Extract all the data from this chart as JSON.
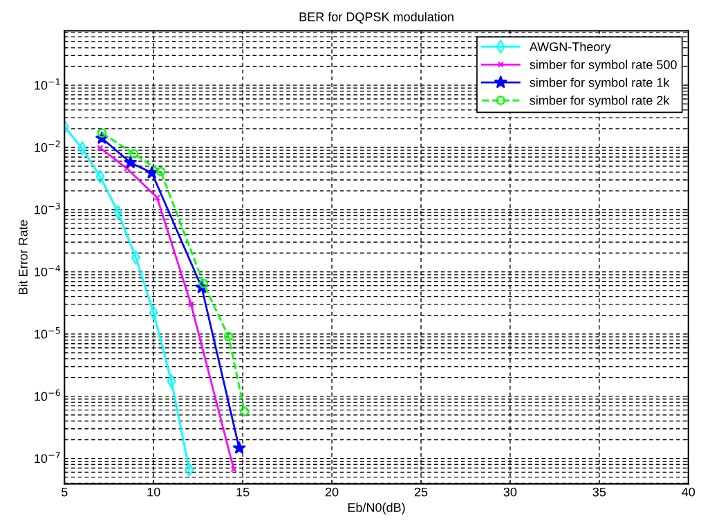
{
  "chart_data": {
    "type": "line",
    "title": "BER for DQPSK modulation",
    "xlabel": "Eb/N0(dB)",
    "ylabel": "Bit Error Rate",
    "log": "y",
    "grid": true,
    "legend": "top right",
    "xlim": [
      5,
      40
    ],
    "xticks": [
      5,
      10,
      15,
      20,
      25,
      30,
      35,
      40
    ],
    "ylim": [
      3.9e-08,
      0.75
    ],
    "yticks": [
      {
        "value": 1e-07,
        "label": "10$^{−7}$"
      },
      {
        "value": 1e-06,
        "label": "10$^{−6}$"
      },
      {
        "value": 1e-05,
        "label": "10$^{−5}$"
      },
      {
        "value": 0.0001,
        "label": "10$^{−4}$"
      },
      {
        "value": 0.001,
        "label": "10$^{−3}$"
      },
      {
        "value": 0.01,
        "label": "10$^{−2}$"
      },
      {
        "value": 0.1,
        "label": "10$^{−1}$"
      }
    ],
    "series": [
      {
        "name": "AWGN-Theory",
        "color": "#00ffff",
        "marker": "diamond",
        "line_style": "solid",
        "x": [
          5,
          6,
          7,
          8,
          9,
          10,
          11,
          12
        ],
        "values": [
          0.0214,
          0.0096,
          0.0034,
          0.00091,
          0.00017,
          2.2e-05,
          1.74e-06,
          6.6e-08
        ]
      },
      {
        "name": "simber for symbol rate 500",
        "color": "#ff00ff",
        "marker": "cross",
        "line_style": "solid",
        "x": [
          7.0,
          8.5,
          10.2,
          12.1,
          14.5
        ],
        "values": [
          0.0098,
          0.0046,
          0.00155,
          3e-05,
          6.7e-08
        ]
      },
      {
        "name": "simber for symbol rate 1k",
        "color": "#0000ff",
        "marker": "star",
        "line_style": "solid",
        "x": [
          7.1,
          8.7,
          9.9,
          12.7,
          14.8
        ],
        "values": [
          0.014,
          0.0057,
          0.0039,
          5.6e-05,
          1.47e-07
        ]
      },
      {
        "name": "simber for symbol rate 2k",
        "color": "#00ff00",
        "marker": "circle",
        "line_style": "dashed",
        "x": [
          7.1,
          8.9,
          10.4,
          12.8,
          14.2,
          15.1
        ],
        "values": [
          0.017,
          0.0079,
          0.0041,
          6.5e-05,
          9.1e-06,
          5.7e-07
        ]
      }
    ]
  }
}
